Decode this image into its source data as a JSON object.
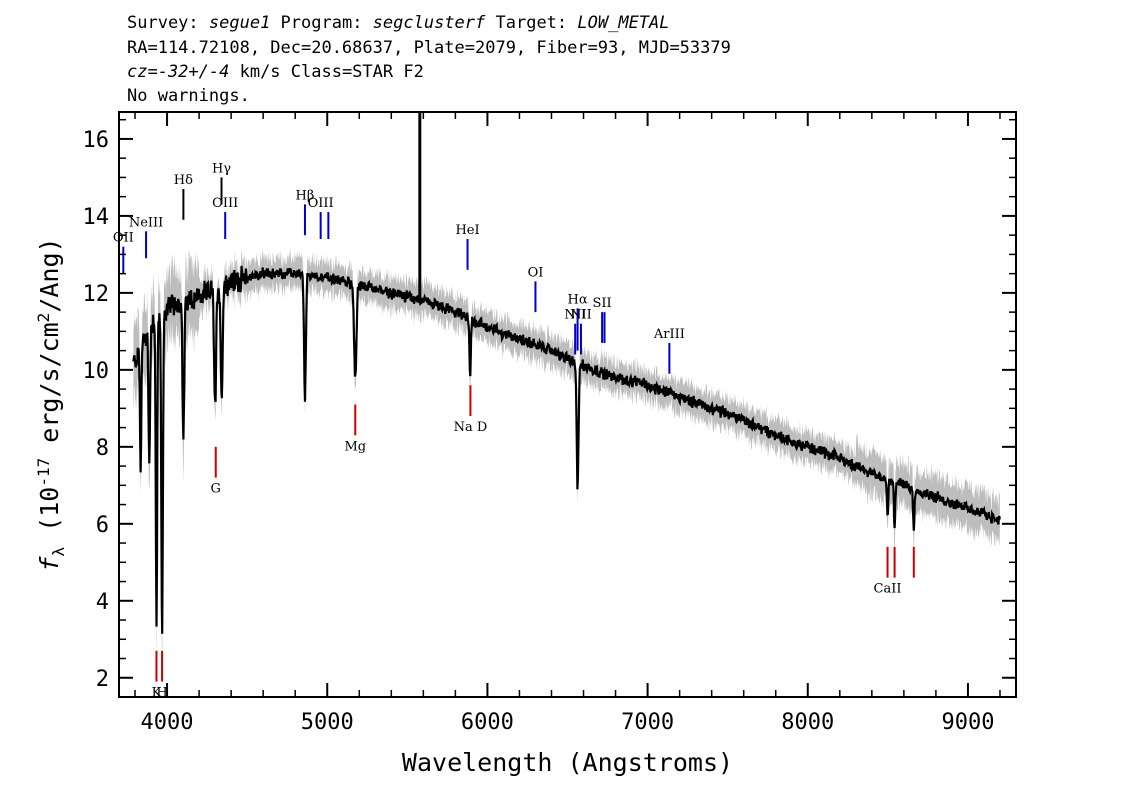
{
  "header": {
    "line1": [
      {
        "t": "Survey: ",
        "i": false
      },
      {
        "t": "segue1",
        "i": true
      },
      {
        "t": " Program: ",
        "i": false
      },
      {
        "t": "segclusterf",
        "i": true
      },
      {
        "t": " Target: ",
        "i": false
      },
      {
        "t": "LOW_METAL",
        "i": true
      }
    ],
    "line2": "RA=114.72108, Dec=20.68637, Plate=2079, Fiber=93, MJD=53379",
    "line3": [
      {
        "t": "cz=-32+/-4",
        "i": true
      },
      {
        "t": " km/s Class=STAR F2",
        "i": false
      }
    ],
    "line4": "No warnings."
  },
  "chart_data": {
    "type": "line",
    "xlabel": "Wavelength (Angstroms)",
    "ylabel": "f_λ (10^-17 erg/s/cm^2/Ang)",
    "xlim": [
      3700,
      9300
    ],
    "ylim": [
      1.5,
      16.7
    ],
    "x_ticks": [
      4000,
      5000,
      6000,
      7000,
      8000,
      9000
    ],
    "y_ticks": [
      2,
      4,
      6,
      8,
      10,
      12,
      14,
      16
    ],
    "continuum": [
      [
        3800,
        10.2
      ],
      [
        3900,
        11.2
      ],
      [
        4000,
        11.6
      ],
      [
        4100,
        11.8
      ],
      [
        4200,
        11.9
      ],
      [
        4300,
        12.1
      ],
      [
        4400,
        12.3
      ],
      [
        4500,
        12.4
      ],
      [
        4600,
        12.5
      ],
      [
        4700,
        12.5
      ],
      [
        4800,
        12.5
      ],
      [
        5000,
        12.4
      ],
      [
        5200,
        12.2
      ],
      [
        5400,
        12.0
      ],
      [
        5600,
        11.8
      ],
      [
        5800,
        11.5
      ],
      [
        6000,
        11.1
      ],
      [
        6200,
        10.8
      ],
      [
        6400,
        10.5
      ],
      [
        6600,
        10.1
      ],
      [
        6800,
        9.8
      ],
      [
        7000,
        9.6
      ],
      [
        7200,
        9.3
      ],
      [
        7400,
        9.0
      ],
      [
        7600,
        8.7
      ],
      [
        7800,
        8.3
      ],
      [
        8000,
        8.0
      ],
      [
        8200,
        7.7
      ],
      [
        8400,
        7.3
      ],
      [
        8600,
        7.0
      ],
      [
        8800,
        6.7
      ],
      [
        9000,
        6.4
      ],
      [
        9200,
        6.1
      ]
    ],
    "absorption_features": [
      {
        "x": 3835,
        "depth": 3.0,
        "w": 6
      },
      {
        "x": 3889,
        "depth": 3.5,
        "w": 7
      },
      {
        "x": 3934,
        "depth": 8.0,
        "w": 6
      },
      {
        "x": 3969,
        "depth": 8.5,
        "w": 7
      },
      {
        "x": 4102,
        "depth": 3.5,
        "w": 8
      },
      {
        "x": 4300,
        "depth": 3.0,
        "w": 9
      },
      {
        "x": 4341,
        "depth": 3.0,
        "w": 8
      },
      {
        "x": 4861,
        "depth": 3.2,
        "w": 8
      },
      {
        "x": 5175,
        "depth": 2.5,
        "w": 10
      },
      {
        "x": 5892,
        "depth": 1.5,
        "w": 6
      },
      {
        "x": 6563,
        "depth": 3.2,
        "w": 8
      },
      {
        "x": 8498,
        "depth": 0.9,
        "w": 6
      },
      {
        "x": 8542,
        "depth": 1.2,
        "w": 6
      },
      {
        "x": 8662,
        "depth": 1.0,
        "w": 6
      }
    ],
    "spikes": [
      {
        "x": 5578,
        "y": 16.7
      }
    ],
    "emission_lines": [
      {
        "label": "OII",
        "x": 3727,
        "y0": 12.5,
        "y1": 13.2
      },
      {
        "label": "NeIII",
        "x": 3869,
        "y0": 12.9,
        "y1": 13.6
      },
      {
        "label": "OIII",
        "x": 4363,
        "y0": 13.4,
        "y1": 14.1
      },
      {
        "label": "Hβ",
        "x": 4861,
        "y0": 13.5,
        "y1": 14.3
      },
      {
        "label": "OIII",
        "x": 4959,
        "y0": 13.4,
        "y1": 14.1
      },
      {
        "label": "",
        "x": 5007,
        "y0": 13.4,
        "y1": 14.1
      },
      {
        "label": "HeI",
        "x": 5876,
        "y0": 12.6,
        "y1": 13.4
      },
      {
        "label": "OI",
        "x": 6300,
        "y0": 11.5,
        "y1": 12.3
      },
      {
        "label": "NII",
        "x": 6548,
        "y0": 10.4,
        "y1": 11.2
      },
      {
        "label": "Hα",
        "x": 6563,
        "y0": 10.5,
        "y1": 11.6
      },
      {
        "label": "NII",
        "x": 6584,
        "y0": 10.4,
        "y1": 11.2
      },
      {
        "label": "SII",
        "x": 6716,
        "y0": 10.7,
        "y1": 11.5
      },
      {
        "label": "",
        "x": 6731,
        "y0": 10.7,
        "y1": 11.5
      },
      {
        "label": "ArIII",
        "x": 7136,
        "y0": 9.9,
        "y1": 10.7
      }
    ],
    "absorption_lines": [
      {
        "label": "Hδ",
        "x": 4102,
        "y0": 13.9,
        "y1": 14.7
      },
      {
        "label": "Hγ",
        "x": 4340,
        "y0": 14.3,
        "y1": 15.0
      },
      {
        "label": "K",
        "x": 3934,
        "y0": 1.9,
        "y1": 2.7
      },
      {
        "label": "H",
        "x": 3969,
        "y0": 1.9,
        "y1": 2.7
      },
      {
        "label": "G",
        "x": 4304,
        "y0": 7.2,
        "y1": 8.0
      },
      {
        "label": "Mg",
        "x": 5175,
        "y0": 8.3,
        "y1": 9.1
      },
      {
        "label": "Na D",
        "x": 5894,
        "y0": 8.8,
        "y1": 9.6
      },
      {
        "label": "CaII",
        "x": 8498,
        "y0": 4.6,
        "y1": 5.4
      },
      {
        "label": "",
        "x": 8542,
        "y0": 4.6,
        "y1": 5.4
      },
      {
        "label": "",
        "x": 8662,
        "y0": 4.6,
        "y1": 5.4
      }
    ],
    "colors": {
      "flux": "#000000",
      "error": "#bdbdbd",
      "emission": "#0000cc",
      "absorption": "#cc0000"
    }
  }
}
